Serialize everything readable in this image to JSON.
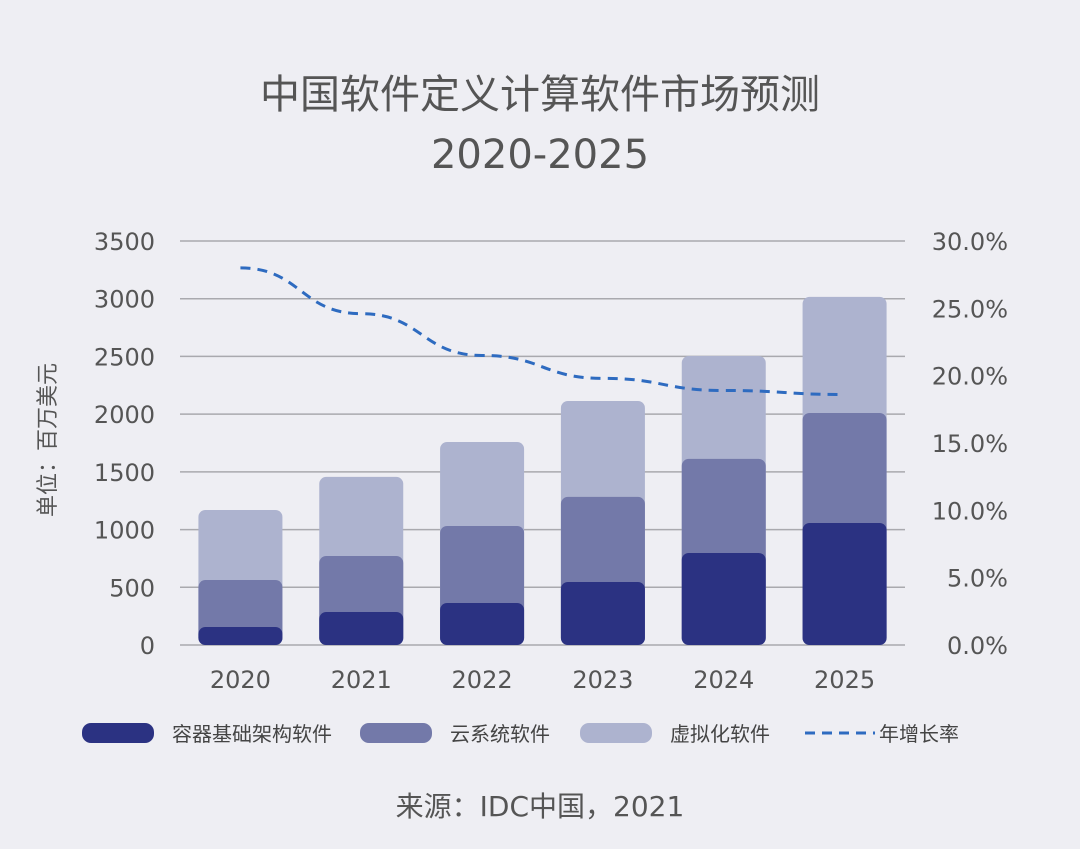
{
  "chart_data": {
    "type": "bar",
    "stacked": true,
    "title": "中国软件定义计算软件市场预测",
    "subtitle": "2020-2025",
    "ylabel": "单位：百万美元",
    "ylabel_right": "",
    "categories": [
      "2020",
      "2021",
      "2022",
      "2023",
      "2024",
      "2025"
    ],
    "ylim": [
      0,
      3500
    ],
    "yticks": [
      "0",
      "500",
      "1000",
      "1500",
      "2000",
      "2500",
      "3000",
      "3500"
    ],
    "y2lim": [
      0,
      30
    ],
    "y2ticks": [
      "0.0%",
      "5.0%",
      "10.0%",
      "15.0%",
      "20.0%",
      "25.0%",
      "30.0%"
    ],
    "grid": true,
    "legend_position": "bottom",
    "series": [
      {
        "name": "容器基础架构软件",
        "values": [
          156,
          286,
          364,
          546,
          797,
          1057
        ],
        "color": "#2b3282"
      },
      {
        "name": "云系统软件",
        "values": [
          407,
          485,
          667,
          737,
          815,
          953
        ],
        "color": "#7379a9"
      },
      {
        "name": "虚拟化软件",
        "values": [
          607,
          685,
          728,
          831,
          892,
          1006
        ],
        "color": "#adb3cf"
      },
      {
        "name": "年增长率",
        "type": "line",
        "axis": "right",
        "style": "dashed",
        "values": [
          28.0,
          24.6,
          21.5,
          19.8,
          18.9,
          18.6
        ],
        "color": "#2e6bc0"
      }
    ],
    "source": "来源：IDC中国，2021"
  }
}
